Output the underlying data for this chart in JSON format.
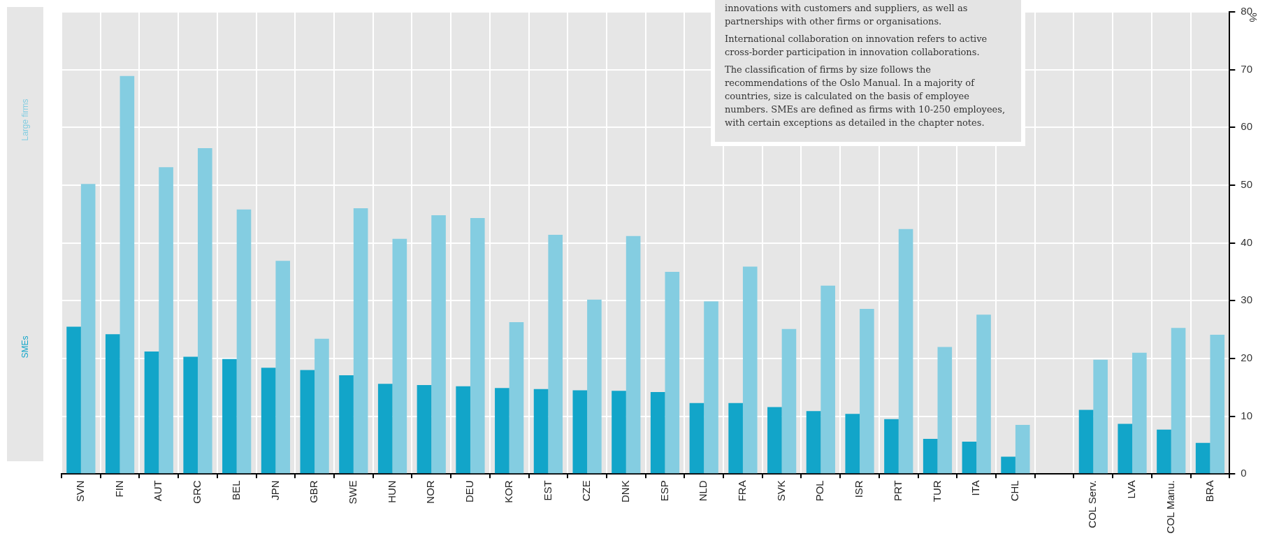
{
  "chart_data": {
    "type": "bar",
    "ylabel": "%",
    "categories": [
      "SVN",
      "FIN",
      "AUT",
      "GRC",
      "BEL",
      "JPN",
      "GBR",
      "SWE",
      "HUN",
      "NOR",
      "DEU",
      "KOR",
      "EST",
      "CZE",
      "DNK",
      "ESP",
      "NLD",
      "FRA",
      "SVK",
      "POL",
      "ISR",
      "PRT",
      "TUR",
      "ITA",
      "CHL",
      null,
      "COL Serv.",
      "LVA",
      "COL Manu.",
      "BRA"
    ],
    "series": [
      {
        "name": "SMEs",
        "color": "#12a5c9",
        "values": [
          25.5,
          24.2,
          21.2,
          20.3,
          19.9,
          18.4,
          18.0,
          17.1,
          15.6,
          15.4,
          15.2,
          14.9,
          14.7,
          14.5,
          14.4,
          14.2,
          12.3,
          12.3,
          11.6,
          10.9,
          10.4,
          9.5,
          6.1,
          5.6,
          3.0,
          null,
          11.1,
          8.7,
          7.7,
          5.4
        ]
      },
      {
        "name": "Large firms",
        "color": "#84cde1",
        "values": [
          50.2,
          68.9,
          53.1,
          56.4,
          45.8,
          36.9,
          23.4,
          46.0,
          40.7,
          44.8,
          44.3,
          26.3,
          41.4,
          30.2,
          41.2,
          35.0,
          29.9,
          35.9,
          25.1,
          32.6,
          28.6,
          42.4,
          22.0,
          27.6,
          8.5,
          null,
          19.8,
          21.0,
          25.3,
          24.1
        ]
      }
    ],
    "ylim": [
      0,
      80
    ],
    "yticks": [
      0,
      10,
      20,
      30,
      40,
      50,
      60,
      70,
      80
    ],
    "grid": true,
    "legend": "left",
    "annotations": [
      "innovations with customers and suppliers, as well as partnerships with other firms or organisations.",
      "International collaboration on innovation refers to active cross-border participation in innovation collaborations.",
      "The classification of firms by size follows the recommendations of the Oslo Manual. In a majority of countries, size is calculated on the basis of employee numbers. SMEs are defined as firms with 10-250 employees, with certain exceptions as detailed in the chapter notes."
    ]
  }
}
